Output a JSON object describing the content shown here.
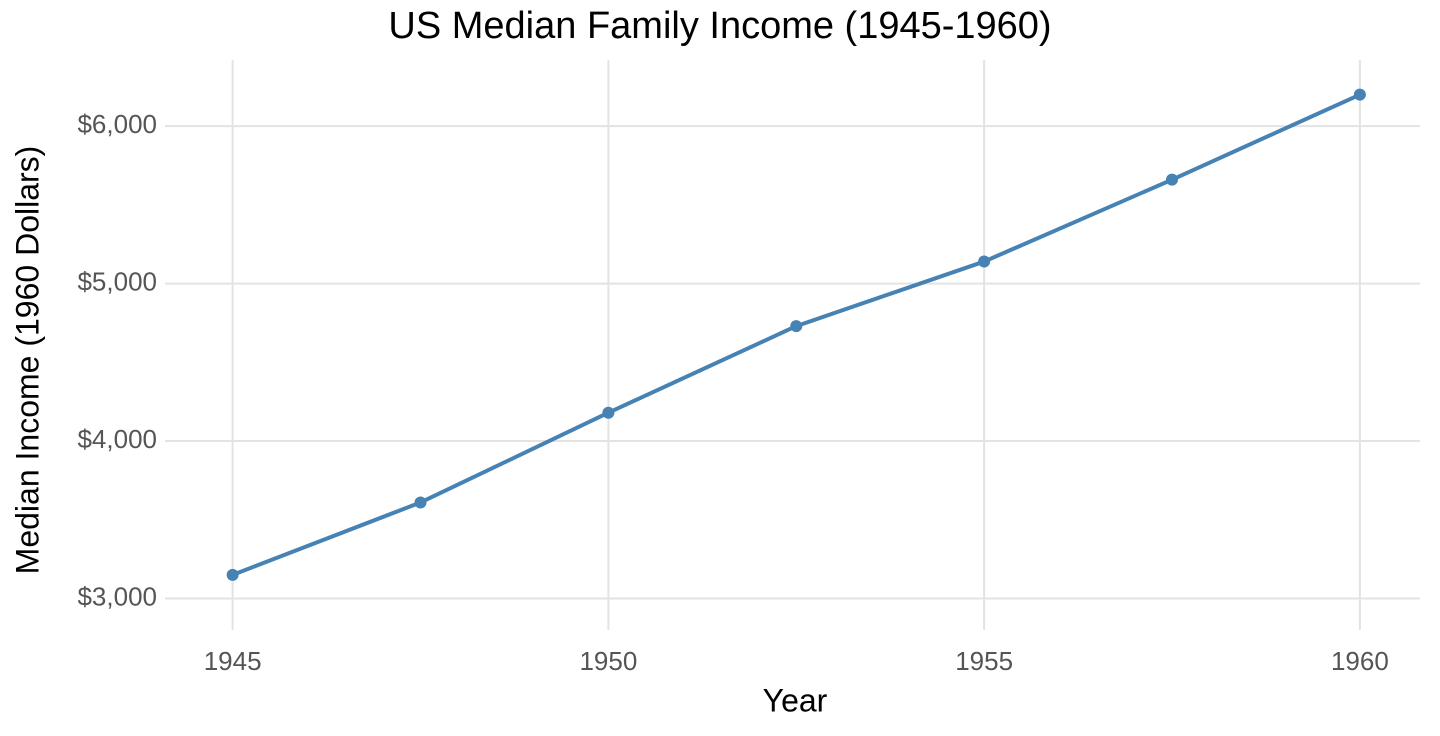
{
  "chart_data": {
    "type": "line",
    "title": "US Median Family Income (1945-1960)",
    "x_label": "Year",
    "y_label": "Median Income (1960 Dollars)",
    "x": [
      1945,
      1947.5,
      1950,
      1952.5,
      1955,
      1957.5,
      1960
    ],
    "series": [
      {
        "name": "Median Income",
        "color": "#4682b4",
        "values": [
          3150,
          3610,
          4180,
          4730,
          5140,
          5660,
          6200
        ]
      }
    ],
    "xlim": [
      1944.1,
      1960.8
    ],
    "xticks": [
      1945,
      1950,
      1955,
      1960
    ],
    "ylim": [
      2800,
      6420
    ],
    "yticks": [
      {
        "value": 3000,
        "label": "$3,000"
      },
      {
        "value": 4000,
        "label": "$4,000"
      },
      {
        "value": 5000,
        "label": "$5,000"
      },
      {
        "value": 6000,
        "label": "$6,000"
      }
    ],
    "grid": true
  }
}
